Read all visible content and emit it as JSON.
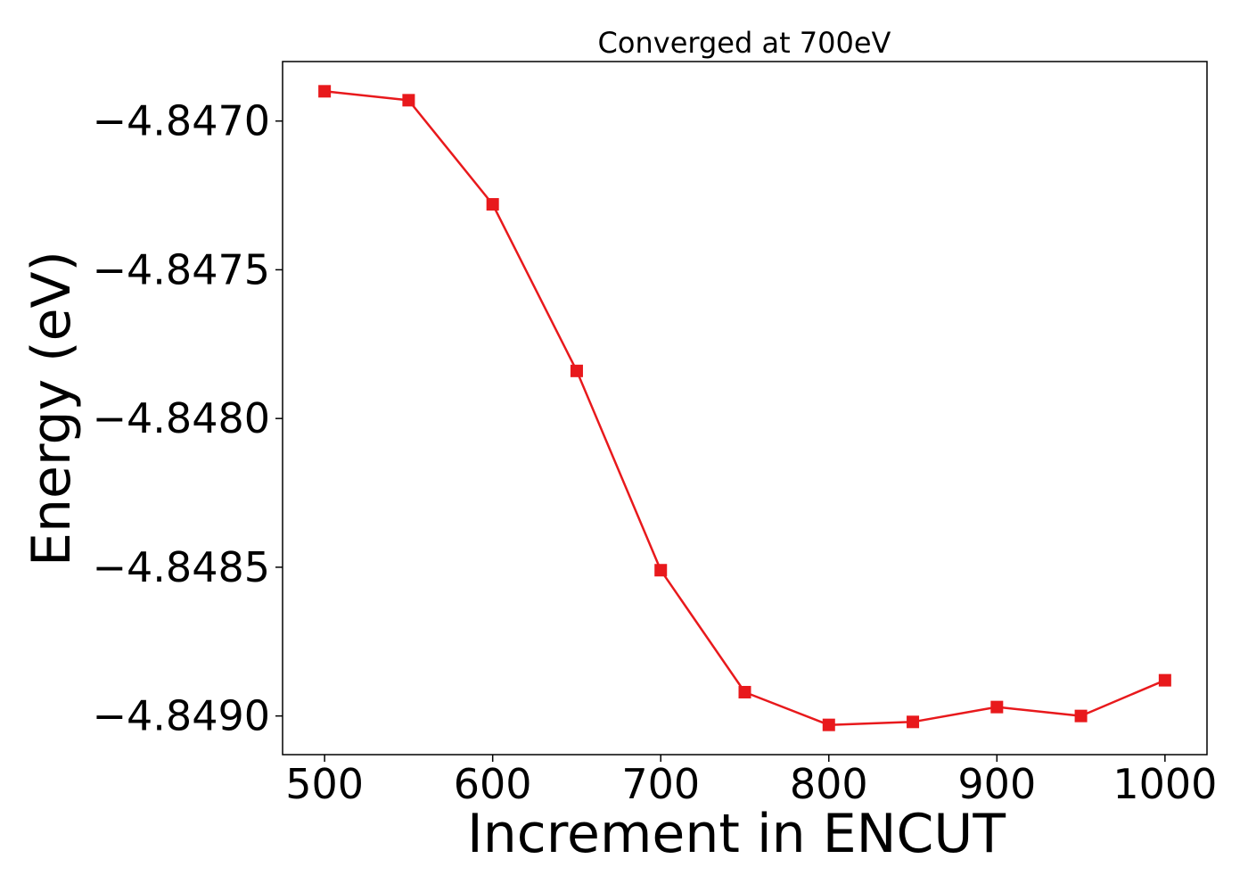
{
  "chart_data": {
    "type": "line",
    "title": "Converged at 700eV",
    "xlabel": "Increment in ENCUT",
    "ylabel": "Energy (eV)",
    "xlim": [
      475,
      1025
    ],
    "ylim": [
      -4.84913,
      -4.8468
    ],
    "x_ticks": [
      500,
      600,
      700,
      800,
      900,
      1000
    ],
    "x_tick_labels": [
      "500",
      "600",
      "700",
      "800",
      "900",
      "1000"
    ],
    "y_ticks": [
      -4.847,
      -4.8475,
      -4.848,
      -4.8485,
      -4.849
    ],
    "y_tick_labels": [
      "−4.8470",
      "−4.8475",
      "−4.8480",
      "−4.8485",
      "−4.8490"
    ],
    "grid": false,
    "series": [
      {
        "color": "#e8191c",
        "marker": "square",
        "x": [
          500,
          550,
          600,
          650,
          700,
          750,
          800,
          850,
          900,
          950,
          1000
        ],
        "y": [
          -4.8469,
          -4.84693,
          -4.84728,
          -4.84784,
          -4.84851,
          -4.84892,
          -4.84903,
          -4.84902,
          -4.84897,
          -4.849,
          -4.84888
        ]
      }
    ]
  }
}
